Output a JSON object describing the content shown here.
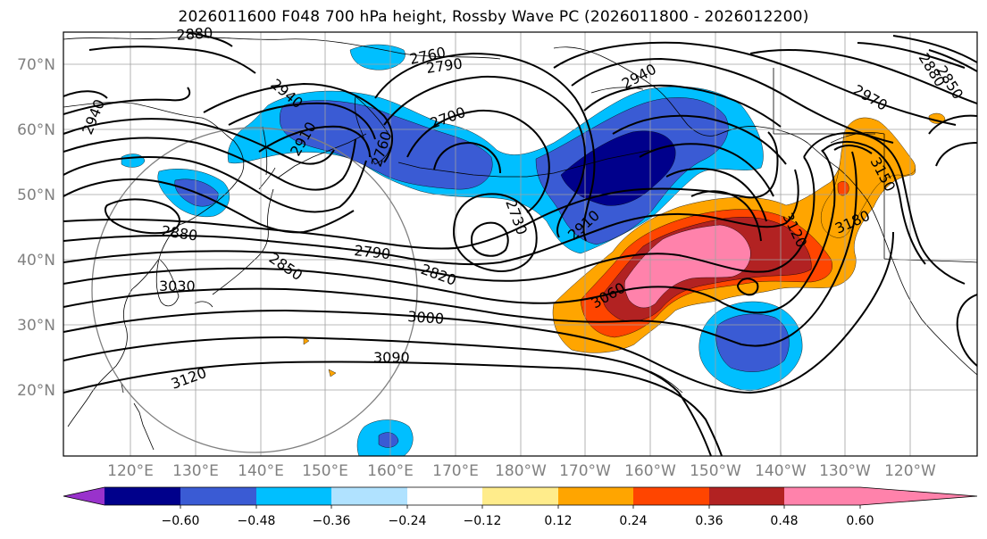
{
  "title": "2026011600 F048 700 hPa height, Rossby Wave PC (2026011800 - 2026012200)",
  "lat_labels": [
    "70°N",
    "60°N",
    "50°N",
    "40°N",
    "30°N",
    "20°N"
  ],
  "lon_labels": [
    "120°E",
    "130°E",
    "140°E",
    "150°E",
    "160°E",
    "170°E",
    "180°W",
    "170°W",
    "160°W",
    "150°W",
    "140°W",
    "130°W",
    "120°W"
  ],
  "contour_labels": {
    "c2880_top": "2880",
    "c2760": "2760",
    "c2790_top": "2790",
    "c2940_nw": "2940",
    "c2940_left": "2940",
    "c2940_ne": "2940",
    "c2970_ne": "2970",
    "c2880_ne": "2880",
    "c2850_ne": "2850",
    "c2910_left": "2910",
    "c2760_kam": "2760",
    "c2700": "2700",
    "c2730": "2730",
    "c2910_mid": "2910",
    "c3150": "3150",
    "c3180": "3180",
    "c3120_e": "3120",
    "c2880_w": "2880",
    "c2850_w": "2850",
    "c2790_mid": "2790",
    "c2820_mid": "2820",
    "c3030": "3030",
    "c3060": "3060",
    "c3000": "3000",
    "c3090": "3090",
    "c3120_sw": "3120"
  },
  "colorbar": {
    "ticks": [
      "−0.60",
      "−0.48",
      "−0.36",
      "−0.24",
      "−0.12",
      "0.12",
      "0.24",
      "0.36",
      "0.48",
      "0.60"
    ],
    "colors": [
      "#9932cc",
      "#00008b",
      "#3a5bd4",
      "#00bfff",
      "#b0e2ff",
      "#ffffff",
      "#ffec8b",
      "#ffa500",
      "#ff4500",
      "#b22222",
      "#ff82ab"
    ]
  }
}
